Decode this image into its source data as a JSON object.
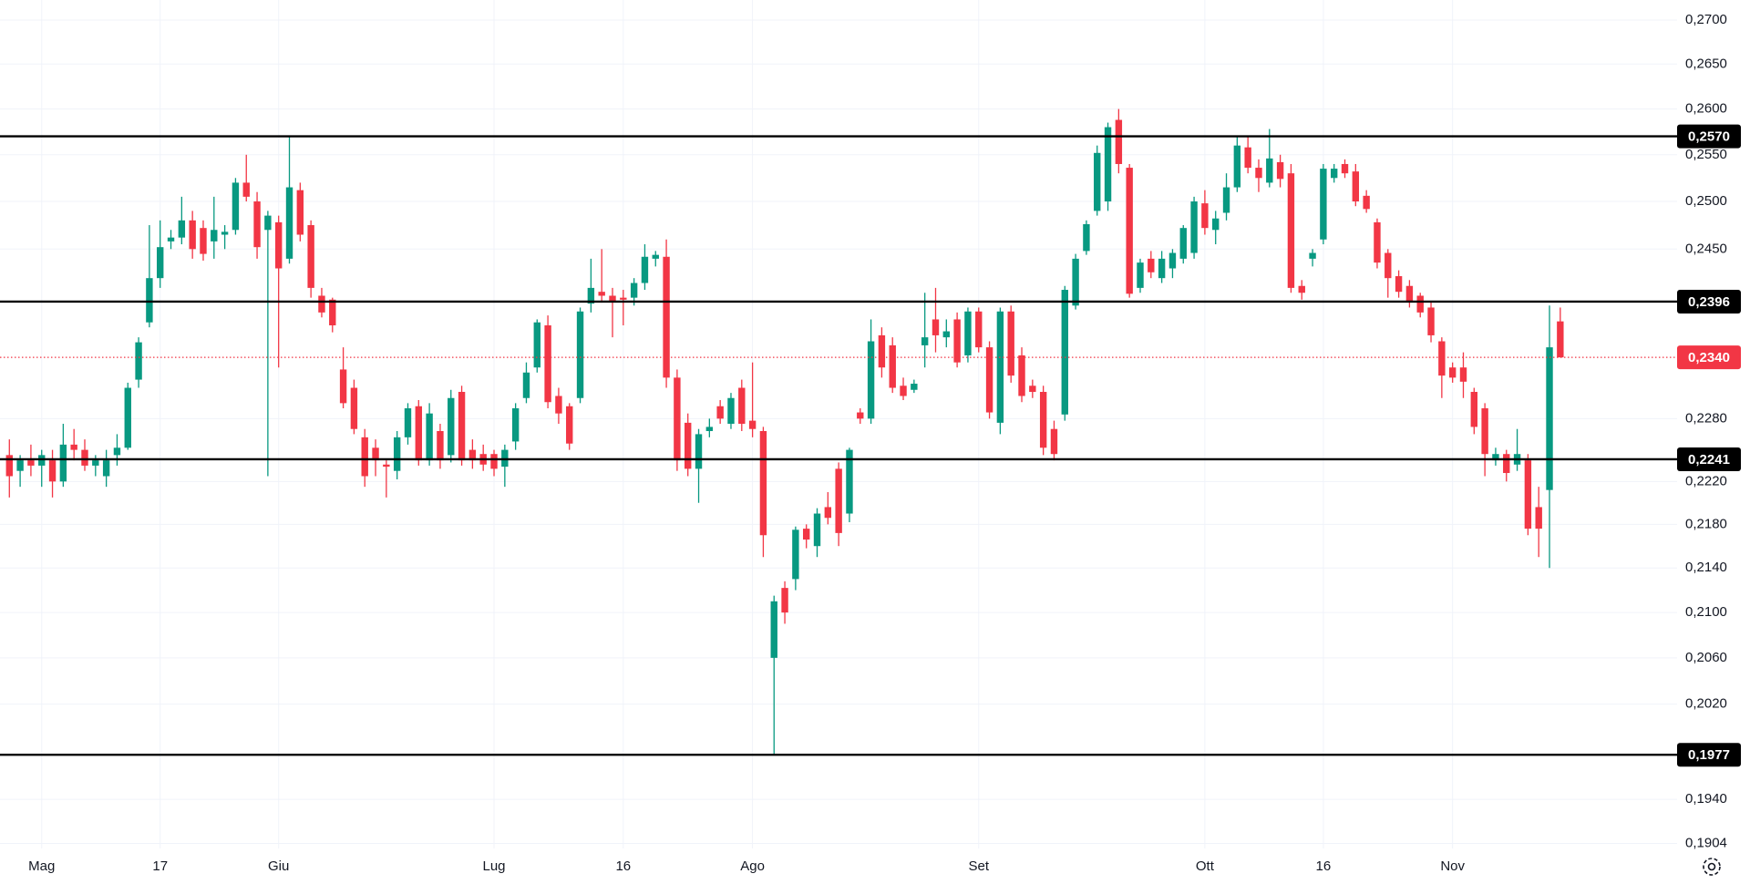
{
  "chart_data": {
    "type": "candlestick",
    "log_scale": true,
    "grid": true,
    "up_color": "#089981",
    "down_color": "#f23645",
    "level_color": "#000000",
    "last_color": "#f23645",
    "ylim": [
      0.19,
      0.2723
    ],
    "yticks": [
      {
        "value": 0.27,
        "label": "0,2700"
      },
      {
        "value": 0.265,
        "label": "0,2650"
      },
      {
        "value": 0.26,
        "label": "0,2600"
      },
      {
        "value": 0.255,
        "label": "0,2550"
      },
      {
        "value": 0.25,
        "label": "0,2500"
      },
      {
        "value": 0.245,
        "label": "0,2450"
      },
      {
        "value": 0.228,
        "label": "0,2280"
      },
      {
        "value": 0.222,
        "label": "0,2220"
      },
      {
        "value": 0.218,
        "label": "0,2180"
      },
      {
        "value": 0.214,
        "label": "0,2140"
      },
      {
        "value": 0.21,
        "label": "0,2100"
      },
      {
        "value": 0.206,
        "label": "0,2060"
      },
      {
        "value": 0.202,
        "label": "0,2020"
      },
      {
        "value": 0.194,
        "label": "0,1940"
      },
      {
        "value": 0.1904,
        "label": "0,1904"
      }
    ],
    "levels": [
      {
        "value": 0.257,
        "label": "0,2570"
      },
      {
        "value": 0.2396,
        "label": "0,2396"
      },
      {
        "value": 0.2241,
        "label": "0,2241"
      },
      {
        "value": 0.1977,
        "label": "0,1977"
      }
    ],
    "last_price": {
      "value": 0.234,
      "label": "0,2340"
    },
    "categories": [
      null,
      null,
      null,
      "Mag",
      null,
      null,
      null,
      null,
      null,
      null,
      null,
      null,
      null,
      null,
      "17",
      null,
      null,
      null,
      null,
      null,
      null,
      null,
      null,
      null,
      null,
      "Giu",
      null,
      null,
      null,
      null,
      null,
      null,
      null,
      null,
      null,
      null,
      null,
      null,
      null,
      null,
      null,
      null,
      null,
      null,
      null,
      "Lug",
      null,
      null,
      null,
      null,
      null,
      null,
      null,
      null,
      null,
      null,
      null,
      "16",
      null,
      null,
      null,
      null,
      null,
      null,
      null,
      null,
      null,
      null,
      null,
      "Ago",
      null,
      null,
      null,
      null,
      null,
      null,
      null,
      null,
      null,
      null,
      null,
      null,
      null,
      null,
      null,
      null,
      null,
      null,
      null,
      null,
      "Set",
      null,
      null,
      null,
      null,
      null,
      null,
      null,
      null,
      null,
      null,
      null,
      null,
      null,
      null,
      null,
      null,
      null,
      null,
      null,
      null,
      "Ott",
      null,
      null,
      null,
      null,
      null,
      null,
      null,
      null,
      null,
      null,
      "16",
      null,
      null,
      null,
      null,
      null,
      null,
      null,
      null,
      null,
      null,
      null,
      "Nov",
      null,
      null,
      null,
      null,
      null,
      null,
      null,
      null,
      null,
      null
    ],
    "ohlc": [
      [
        0.2245,
        0.226,
        0.2205,
        0.2225
      ],
      [
        0.223,
        0.2245,
        0.2215,
        0.224
      ],
      [
        0.224,
        0.2255,
        0.2225,
        0.2235
      ],
      [
        0.2235,
        0.225,
        0.2215,
        0.2245
      ],
      [
        0.224,
        0.225,
        0.2205,
        0.222
      ],
      [
        0.222,
        0.2275,
        0.2215,
        0.2255
      ],
      [
        0.2255,
        0.227,
        0.224,
        0.225
      ],
      [
        0.225,
        0.226,
        0.223,
        0.2235
      ],
      [
        0.2235,
        0.2245,
        0.2225,
        0.224
      ],
      [
        0.2225,
        0.225,
        0.2215,
        0.224
      ],
      [
        0.2245,
        0.2265,
        0.2235,
        0.2252
      ],
      [
        0.2252,
        0.2315,
        0.225,
        0.231
      ],
      [
        0.2318,
        0.236,
        0.231,
        0.2355
      ],
      [
        0.2375,
        0.2475,
        0.237,
        0.242
      ],
      [
        0.242,
        0.248,
        0.241,
        0.2452
      ],
      [
        0.2458,
        0.247,
        0.245,
        0.2462
      ],
      [
        0.2462,
        0.2505,
        0.2455,
        0.248
      ],
      [
        0.248,
        0.249,
        0.244,
        0.245
      ],
      [
        0.2472,
        0.248,
        0.2438,
        0.2445
      ],
      [
        0.2458,
        0.2505,
        0.244,
        0.247
      ],
      [
        0.2465,
        0.2475,
        0.245,
        0.2468
      ],
      [
        0.247,
        0.2525,
        0.2465,
        0.252
      ],
      [
        0.252,
        0.255,
        0.25,
        0.2505
      ],
      [
        0.25,
        0.251,
        0.244,
        0.2452
      ],
      [
        0.247,
        0.249,
        0.2225,
        0.2485
      ],
      [
        0.2478,
        0.2485,
        0.233,
        0.243
      ],
      [
        0.244,
        0.257,
        0.2435,
        0.2515
      ],
      [
        0.2512,
        0.252,
        0.2458,
        0.2465
      ],
      [
        0.2475,
        0.248,
        0.24,
        0.241
      ],
      [
        0.2402,
        0.241,
        0.238,
        0.2385
      ],
      [
        0.2398,
        0.24,
        0.2365,
        0.2372
      ],
      [
        0.2328,
        0.235,
        0.229,
        0.2295
      ],
      [
        0.231,
        0.2318,
        0.2265,
        0.227
      ],
      [
        0.2262,
        0.227,
        0.2215,
        0.2225
      ],
      [
        0.2252,
        0.226,
        0.2225,
        0.224
      ],
      [
        0.2236,
        0.224,
        0.2205,
        0.2234
      ],
      [
        0.223,
        0.2268,
        0.2222,
        0.2262
      ],
      [
        0.2262,
        0.2295,
        0.2255,
        0.229
      ],
      [
        0.2292,
        0.2298,
        0.2235,
        0.224
      ],
      [
        0.224,
        0.2295,
        0.2235,
        0.2285
      ],
      [
        0.2268,
        0.2275,
        0.2232,
        0.224
      ],
      [
        0.2245,
        0.2308,
        0.2238,
        0.23
      ],
      [
        0.2306,
        0.2312,
        0.2235,
        0.224
      ],
      [
        0.225,
        0.226,
        0.2232,
        0.224
      ],
      [
        0.2246,
        0.2255,
        0.223,
        0.2236
      ],
      [
        0.2246,
        0.225,
        0.2225,
        0.2232
      ],
      [
        0.2234,
        0.2255,
        0.2215,
        0.225
      ],
      [
        0.2258,
        0.2295,
        0.225,
        0.229
      ],
      [
        0.23,
        0.2335,
        0.2295,
        0.2325
      ],
      [
        0.233,
        0.2378,
        0.2325,
        0.2375
      ],
      [
        0.2372,
        0.2382,
        0.229,
        0.2296
      ],
      [
        0.2302,
        0.231,
        0.2275,
        0.2285
      ],
      [
        0.2292,
        0.2295,
        0.225,
        0.2256
      ],
      [
        0.23,
        0.239,
        0.2295,
        0.2386
      ],
      [
        0.2394,
        0.244,
        0.2385,
        0.241
      ],
      [
        0.2406,
        0.245,
        0.2395,
        0.2402
      ],
      [
        0.2402,
        0.241,
        0.236,
        0.2396
      ],
      [
        0.24,
        0.2408,
        0.2372,
        0.2398
      ],
      [
        0.24,
        0.242,
        0.2392,
        0.2415
      ],
      [
        0.2415,
        0.2455,
        0.2408,
        0.2442
      ],
      [
        0.244,
        0.2448,
        0.2432,
        0.2444
      ],
      [
        0.2442,
        0.246,
        0.231,
        0.232
      ],
      [
        0.232,
        0.2328,
        0.223,
        0.224
      ],
      [
        0.2276,
        0.2285,
        0.2225,
        0.2232
      ],
      [
        0.2232,
        0.227,
        0.22,
        0.2265
      ],
      [
        0.2268,
        0.228,
        0.2262,
        0.2272
      ],
      [
        0.2292,
        0.2298,
        0.2275,
        0.228
      ],
      [
        0.2275,
        0.2305,
        0.227,
        0.23
      ],
      [
        0.231,
        0.2318,
        0.2268,
        0.2275
      ],
      [
        0.2278,
        0.2335,
        0.2262,
        0.227
      ],
      [
        0.2268,
        0.2272,
        0.215,
        0.217
      ],
      [
        0.206,
        0.2115,
        0.1977,
        0.211
      ],
      [
        0.2122,
        0.2128,
        0.209,
        0.21
      ],
      [
        0.213,
        0.2178,
        0.212,
        0.2175
      ],
      [
        0.2176,
        0.218,
        0.2158,
        0.2166
      ],
      [
        0.216,
        0.2195,
        0.215,
        0.219
      ],
      [
        0.2196,
        0.221,
        0.218,
        0.2186
      ],
      [
        0.2232,
        0.2238,
        0.216,
        0.2172
      ],
      [
        0.219,
        0.2252,
        0.2182,
        0.225
      ],
      [
        0.2286,
        0.229,
        0.2275,
        0.228
      ],
      [
        0.228,
        0.2378,
        0.2275,
        0.2356
      ],
      [
        0.2362,
        0.237,
        0.232,
        0.233
      ],
      [
        0.2352,
        0.236,
        0.2305,
        0.231
      ],
      [
        0.2312,
        0.232,
        0.2298,
        0.2302
      ],
      [
        0.2308,
        0.2318,
        0.2305,
        0.2314
      ],
      [
        0.2352,
        0.2405,
        0.233,
        0.236
      ],
      [
        0.2378,
        0.241,
        0.2345,
        0.2362
      ],
      [
        0.236,
        0.2378,
        0.235,
        0.2366
      ],
      [
        0.2378,
        0.2385,
        0.233,
        0.2335
      ],
      [
        0.2342,
        0.239,
        0.2335,
        0.2386
      ],
      [
        0.2386,
        0.239,
        0.2345,
        0.235
      ],
      [
        0.235,
        0.2356,
        0.228,
        0.2286
      ],
      [
        0.2276,
        0.239,
        0.2265,
        0.2386
      ],
      [
        0.2386,
        0.2392,
        0.2315,
        0.2322
      ],
      [
        0.2342,
        0.235,
        0.2296,
        0.2302
      ],
      [
        0.2312,
        0.2318,
        0.23,
        0.2306
      ],
      [
        0.2306,
        0.2312,
        0.2245,
        0.2252
      ],
      [
        0.227,
        0.2278,
        0.224,
        0.2246
      ],
      [
        0.2284,
        0.2412,
        0.2278,
        0.2408
      ],
      [
        0.2392,
        0.2445,
        0.2388,
        0.244
      ],
      [
        0.2448,
        0.248,
        0.2444,
        0.2476
      ],
      [
        0.249,
        0.256,
        0.2485,
        0.2552
      ],
      [
        0.25,
        0.2585,
        0.249,
        0.258
      ],
      [
        0.2588,
        0.26,
        0.253,
        0.254
      ],
      [
        0.2536,
        0.254,
        0.24,
        0.2404
      ],
      [
        0.241,
        0.244,
        0.2405,
        0.2436
      ],
      [
        0.244,
        0.2448,
        0.242,
        0.2426
      ],
      [
        0.242,
        0.2448,
        0.2415,
        0.244
      ],
      [
        0.243,
        0.245,
        0.242,
        0.2446
      ],
      [
        0.244,
        0.2475,
        0.2435,
        0.2472
      ],
      [
        0.2446,
        0.2505,
        0.244,
        0.25
      ],
      [
        0.2498,
        0.2512,
        0.2465,
        0.2472
      ],
      [
        0.247,
        0.249,
        0.2455,
        0.2482
      ],
      [
        0.2488,
        0.253,
        0.248,
        0.2515
      ],
      [
        0.2515,
        0.257,
        0.251,
        0.256
      ],
      [
        0.2558,
        0.257,
        0.253,
        0.2536
      ],
      [
        0.2536,
        0.2545,
        0.251,
        0.2525
      ],
      [
        0.252,
        0.2578,
        0.2515,
        0.2546
      ],
      [
        0.2542,
        0.255,
        0.2515,
        0.2524
      ],
      [
        0.253,
        0.254,
        0.2405,
        0.241
      ],
      [
        0.2412,
        0.2418,
        0.2398,
        0.2405
      ],
      [
        0.244,
        0.245,
        0.2432,
        0.2446
      ],
      [
        0.246,
        0.254,
        0.2455,
        0.2535
      ],
      [
        0.2525,
        0.254,
        0.252,
        0.2535
      ],
      [
        0.254,
        0.2545,
        0.2525,
        0.253
      ],
      [
        0.2532,
        0.254,
        0.2495,
        0.25
      ],
      [
        0.2506,
        0.2512,
        0.2488,
        0.2492
      ],
      [
        0.2478,
        0.2482,
        0.243,
        0.2436
      ],
      [
        0.2446,
        0.245,
        0.24,
        0.242
      ],
      [
        0.2422,
        0.2428,
        0.24,
        0.2406
      ],
      [
        0.2412,
        0.2418,
        0.239,
        0.2396
      ],
      [
        0.2402,
        0.2405,
        0.238,
        0.2385
      ],
      [
        0.239,
        0.2395,
        0.2355,
        0.2362
      ],
      [
        0.2356,
        0.236,
        0.23,
        0.2322
      ],
      [
        0.233,
        0.2335,
        0.2315,
        0.232
      ],
      [
        0.233,
        0.2345,
        0.23,
        0.2316
      ],
      [
        0.2306,
        0.231,
        0.2265,
        0.2272
      ],
      [
        0.229,
        0.2295,
        0.2225,
        0.2246
      ],
      [
        0.224,
        0.2252,
        0.2235,
        0.2246
      ],
      [
        0.2246,
        0.225,
        0.222,
        0.2228
      ],
      [
        0.2236,
        0.227,
        0.223,
        0.2246
      ],
      [
        0.224,
        0.2246,
        0.217,
        0.2176
      ],
      [
        0.2196,
        0.2215,
        0.215,
        0.2176
      ],
      [
        0.2212,
        0.2392,
        0.214,
        0.235
      ],
      [
        0.2376,
        0.239,
        0.234,
        0.234
      ]
    ]
  }
}
